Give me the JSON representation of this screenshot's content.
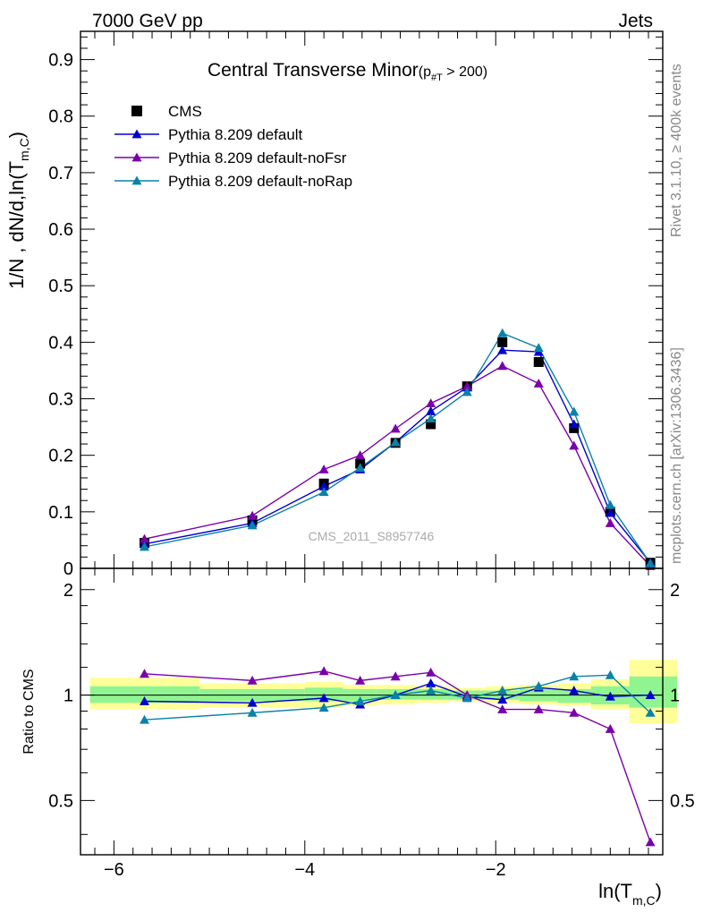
{
  "header": {
    "left": "7000 GeV pp",
    "right": "Jets"
  },
  "side_text": {
    "rivet": "Rivet 3.1.10, ≥ 400k events",
    "mcplots": "mcplots.cern.ch [arXiv:1306.3436]"
  },
  "watermark": "CMS_2011_S8957746",
  "colors": {
    "cms": "#000000",
    "default": "#0000cc",
    "noFsr": "#7a00a8",
    "noRap": "#0a82a8",
    "band_green": "#90f590",
    "band_yellow": "#ffff99"
  },
  "chart_data": [
    {
      "type": "line",
      "title": "Central Transverse Minor",
      "title_sub": "(p",
      "title_sub2": "#T",
      "title_sub3": " > 200)",
      "ylabel": "1/N , dN/d,ln(T",
      "ylabel_sub": "m,C",
      "ylabel_end": ")",
      "xlim": [
        -6.35,
        -0.25
      ],
      "ylim": [
        0,
        0.95
      ],
      "yticks": [
        0.1,
        0.2,
        0.3,
        0.4,
        0.5,
        0.6,
        0.7,
        0.8,
        0.9
      ],
      "ytick_labels": [
        "0.1",
        "0.2",
        "0.3",
        "0.4",
        "0.5",
        "0.6",
        "0.7",
        "0.8",
        "0.9"
      ],
      "bottom_label": "0",
      "legend_position": "top-left",
      "x": [
        -5.68,
        -4.55,
        -3.8,
        -3.42,
        -3.05,
        -2.68,
        -2.3,
        -1.93,
        -1.55,
        -1.18,
        -0.8,
        -0.38
      ],
      "series": [
        {
          "name": "CMS",
          "key": "cms",
          "marker": "square",
          "values": [
            0.045,
            0.085,
            0.15,
            0.185,
            0.222,
            0.255,
            0.322,
            0.4,
            0.365,
            0.248,
            0.1,
            0.01
          ]
        },
        {
          "name": "Pythia 8.209 default",
          "key": "default",
          "marker": "triangle",
          "values": [
            0.043,
            0.08,
            0.145,
            0.175,
            0.223,
            0.278,
            0.32,
            0.386,
            0.383,
            0.255,
            0.098,
            0.01
          ]
        },
        {
          "name": "Pythia 8.209 default-noFsr",
          "key": "noFsr",
          "marker": "triangle",
          "values": [
            0.052,
            0.093,
            0.175,
            0.2,
            0.247,
            0.292,
            0.322,
            0.358,
            0.327,
            0.217,
            0.08,
            0.004
          ]
        },
        {
          "name": "Pythia 8.209 default-noRap",
          "key": "noRap",
          "marker": "triangle",
          "values": [
            0.038,
            0.076,
            0.135,
            0.178,
            0.223,
            0.265,
            0.312,
            0.416,
            0.39,
            0.277,
            0.112,
            0.009
          ]
        }
      ]
    },
    {
      "type": "line",
      "ylabel": "Ratio to CMS",
      "xlabel": "ln(T",
      "xlabel_sub": "m,C",
      "xlabel_end": ")",
      "xlim": [
        -6.35,
        -0.25
      ],
      "ylim": [
        0.35,
        2.3
      ],
      "yticks": [
        0.5,
        1,
        2
      ],
      "ytick_labels": [
        "0.5",
        "1",
        "2"
      ],
      "xticks": [
        -6,
        -4,
        -2
      ],
      "xtick_labels": [
        "−6",
        "−4",
        "−2"
      ],
      "x": [
        -5.68,
        -4.55,
        -3.8,
        -3.42,
        -3.05,
        -2.68,
        -2.3,
        -1.93,
        -1.55,
        -1.18,
        -0.8,
        -0.38
      ],
      "bins": [
        [
          -6.25,
          -5.1
        ],
        [
          -5.1,
          -4.0
        ],
        [
          -4.0,
          -3.6
        ],
        [
          -3.6,
          -3.25
        ],
        [
          -3.25,
          -2.85
        ],
        [
          -2.85,
          -2.5
        ],
        [
          -2.5,
          -2.1
        ],
        [
          -2.1,
          -1.75
        ],
        [
          -1.75,
          -1.35
        ],
        [
          -1.35,
          -1.0
        ],
        [
          -1.0,
          -0.6
        ],
        [
          -0.6,
          -0.1
        ]
      ],
      "band_green": [
        [
          0.95,
          1.06
        ],
        [
          0.96,
          1.04
        ],
        [
          0.96,
          1.05
        ],
        [
          0.96,
          1.04
        ],
        [
          0.97,
          1.04
        ],
        [
          0.97,
          1.04
        ],
        [
          0.97,
          1.03
        ],
        [
          0.97,
          1.03
        ],
        [
          0.96,
          1.04
        ],
        [
          0.95,
          1.04
        ],
        [
          0.94,
          1.06
        ],
        [
          0.92,
          1.13
        ]
      ],
      "band_yellow": [
        [
          0.91,
          1.12
        ],
        [
          0.92,
          1.08
        ],
        [
          0.92,
          1.09
        ],
        [
          0.93,
          1.07
        ],
        [
          0.94,
          1.07
        ],
        [
          0.95,
          1.06
        ],
        [
          0.96,
          1.05
        ],
        [
          0.95,
          1.06
        ],
        [
          0.94,
          1.07
        ],
        [
          0.93,
          1.08
        ],
        [
          0.91,
          1.11
        ],
        [
          0.83,
          1.26
        ]
      ],
      "series": [
        {
          "name": "Pythia 8.209 default",
          "key": "default",
          "values": [
            0.96,
            0.95,
            0.98,
            0.94,
            1.0,
            1.08,
            0.99,
            0.97,
            1.05,
            1.03,
            0.99,
            1.0
          ]
        },
        {
          "name": "Pythia 8.209 default-noFsr",
          "key": "noFsr",
          "values": [
            1.15,
            1.1,
            1.17,
            1.1,
            1.13,
            1.16,
            1.0,
            0.91,
            0.91,
            0.89,
            0.8,
            0.38
          ]
        },
        {
          "name": "Pythia 8.209 default-noRap",
          "key": "noRap",
          "values": [
            0.85,
            0.89,
            0.92,
            0.96,
            1.0,
            1.03,
            0.98,
            1.03,
            1.06,
            1.13,
            1.14,
            0.89
          ]
        }
      ]
    }
  ]
}
